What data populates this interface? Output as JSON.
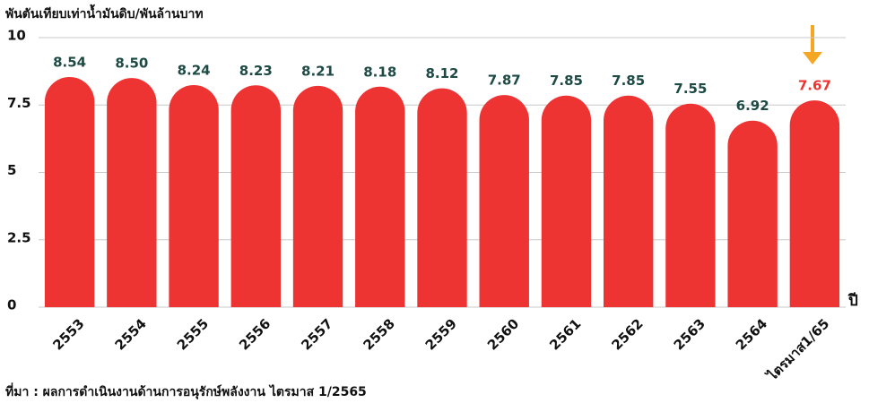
{
  "chart_data": {
    "type": "bar",
    "y_label": "พันตันเทียบเท่าน้ำมันดิบ/พันล้านบาท",
    "x_label": "ปี",
    "source": "ที่มา : ผลการดำเนินงานด้านการอนุรักษ์พลังงาน ไตรมาส 1/2565",
    "categories": [
      "2553",
      "2554",
      "2555",
      "2556",
      "2557",
      "2558",
      "2559",
      "2560",
      "2561",
      "2562",
      "2563",
      "2564",
      "ไตรมาส1/65"
    ],
    "values": [
      8.54,
      8.5,
      8.24,
      8.23,
      8.21,
      8.18,
      8.12,
      7.87,
      7.85,
      7.85,
      7.55,
      6.92,
      7.67
    ],
    "value_labels": [
      "8.54",
      "8.50",
      "8.24",
      "8.23",
      "8.21",
      "8.18",
      "8.12",
      "7.87",
      "7.85",
      "7.85",
      "7.55",
      "6.92",
      "7.67"
    ],
    "color": "#ee3333",
    "value_label_colors": [
      "#1d4a44",
      "#1d4a44",
      "#1d4a44",
      "#1d4a44",
      "#1d4a44",
      "#1d4a44",
      "#1d4a44",
      "#1d4a44",
      "#1d4a44",
      "#1d4a44",
      "#1d4a44",
      "#1d4a44",
      "#ee3333"
    ],
    "ylim": [
      0,
      10
    ],
    "yticks": [
      0,
      2.5,
      5,
      7.5,
      10
    ],
    "grid": true
  }
}
